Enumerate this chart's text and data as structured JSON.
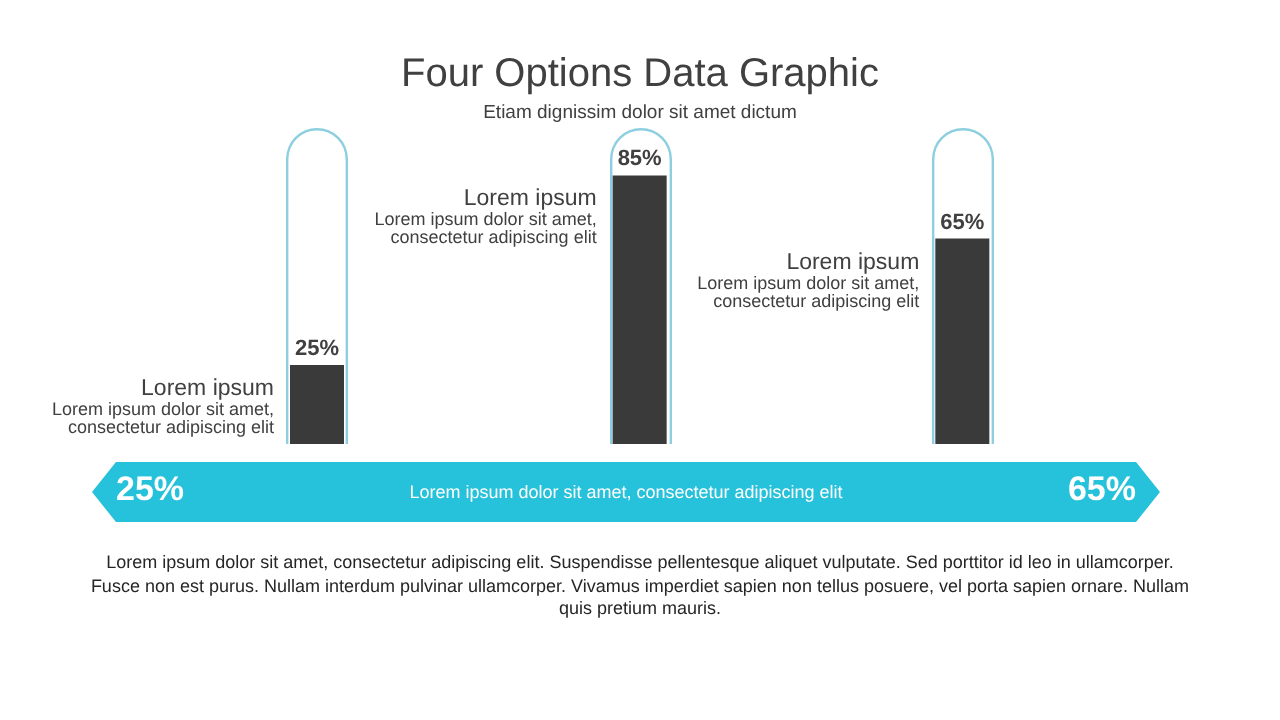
{
  "chart_data": {
    "type": "bar",
    "title": "Four Options Data Graphic",
    "subtitle": "Etiam dignissim dolor sit amet dictum",
    "categories": [
      "Lorem ipsum",
      "Lorem ipsum",
      "Lorem ipsum"
    ],
    "values": [
      25,
      85,
      65
    ],
    "value_labels": [
      "25%",
      "85%",
      "65%"
    ],
    "color": "#3a3a3a",
    "annotations": [
      "Lorem ipsum dolor sit amet, consectetur adipiscing elit",
      "Lorem ipsum dolor sit amet, consectetur adipiscing elit",
      "Lorem ipsum dolor sit amet, consectetur adipiscing elit",
      "25%",
      "Lorem ipsum dolor sit amet, consectetur adipiscing elit",
      "65%",
      "Lorem ipsum dolor sit amet, consectetur adipiscing elit. Suspendisse pellentesque aliquet vulputate. Sed porttitor id leo in ullamcorper. Fusce non est purus. Nullam interdum pulvinar ullamcorper. Vivamus imperdiet sapien non tellus posuere, vel porta sapien ornare. Nullam quis pretium mauris."
    ]
  }
}
